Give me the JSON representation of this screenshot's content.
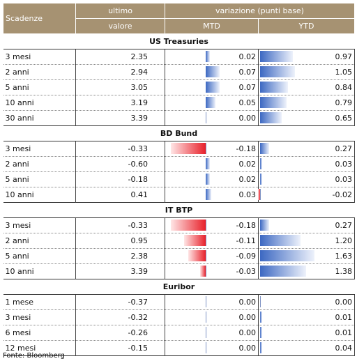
{
  "header": {
    "scadenze": "Scadenze",
    "ultimo": "ultimo",
    "valore": "valore",
    "variazione": "variazione (punti base)",
    "mtd": "MTD",
    "ytd": "YTD"
  },
  "sections": [
    {
      "title": "US Treasuries",
      "rows": [
        {
          "label": "3 mesi",
          "value": "2.35",
          "mtd": "0.02",
          "ytd": "0.97"
        },
        {
          "label": "2 anni",
          "value": "2.94",
          "mtd": "0.07",
          "ytd": "1.05"
        },
        {
          "label": "5 anni",
          "value": "3.05",
          "mtd": "0.07",
          "ytd": "0.84"
        },
        {
          "label": "10 anni",
          "value": "3.19",
          "mtd": "0.05",
          "ytd": "0.79"
        },
        {
          "label": "30 anni",
          "value": "3.39",
          "mtd": "0.00",
          "ytd": "0.65"
        }
      ]
    },
    {
      "title": "BD Bund",
      "rows": [
        {
          "label": "3 mesi",
          "value": "-0.33",
          "mtd": "-0.18",
          "ytd": "0.27"
        },
        {
          "label": "2 anni",
          "value": "-0.60",
          "mtd": "0.02",
          "ytd": "0.03"
        },
        {
          "label": "5 anni",
          "value": "-0.18",
          "mtd": "0.02",
          "ytd": "0.03"
        },
        {
          "label": "10 anni",
          "value": "0.41",
          "mtd": "0.03",
          "ytd": "-0.02"
        }
      ]
    },
    {
      "title": "IT BTP",
      "rows": [
        {
          "label": "3 mesi",
          "value": "-0.33",
          "mtd": "-0.18",
          "ytd": "0.27"
        },
        {
          "label": "2 anni",
          "value": "0.95",
          "mtd": "-0.11",
          "ytd": "1.20"
        },
        {
          "label": "5 anni",
          "value": "2.38",
          "mtd": "-0.09",
          "ytd": "1.63"
        },
        {
          "label": "10 anni",
          "value": "3.39",
          "mtd": "-0.03",
          "ytd": "1.38"
        }
      ]
    },
    {
      "title": "Euribor",
      "rows": [
        {
          "label": "1 mese",
          "value": "-0.37",
          "mtd": "0.00",
          "ytd": "0.00"
        },
        {
          "label": "3 mesi",
          "value": "-0.32",
          "mtd": "0.00",
          "ytd": "0.01"
        },
        {
          "label": "6 mesi",
          "value": "-0.26",
          "mtd": "0.00",
          "ytd": "0.01"
        },
        {
          "label": "12 mesi",
          "value": "-0.15",
          "mtd": "0.00",
          "ytd": "0.04"
        }
      ]
    }
  ],
  "footer": "Fonte: Bloomberg",
  "colors": {
    "header_bg": "#a69272",
    "positive_bar": "#3c68c2",
    "negative_bar": "#e8202a"
  }
}
